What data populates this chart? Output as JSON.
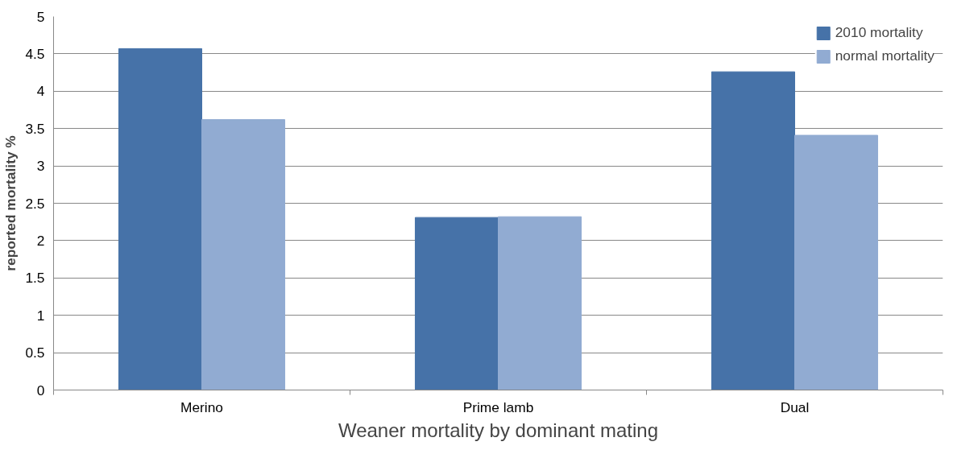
{
  "chart_data": {
    "type": "bar",
    "xlabel": "Weaner mortality by dominant mating",
    "ylabel": "reported mortality %",
    "categories": [
      "Merino",
      "Prime lamb",
      "Dual"
    ],
    "series": [
      {
        "name": "2010 mortality",
        "color": "#4672a8",
        "values": [
          4.57,
          2.31,
          4.26
        ]
      },
      {
        "name": "normal mortality",
        "color": "#91abd2",
        "values": [
          3.62,
          2.32,
          3.41
        ]
      }
    ],
    "ylim": [
      0,
      5
    ],
    "yticks": [
      0,
      0.5,
      1,
      1.5,
      2,
      2.5,
      3,
      3.5,
      4,
      4.5,
      5
    ],
    "grid": "y",
    "legend": "top right"
  }
}
